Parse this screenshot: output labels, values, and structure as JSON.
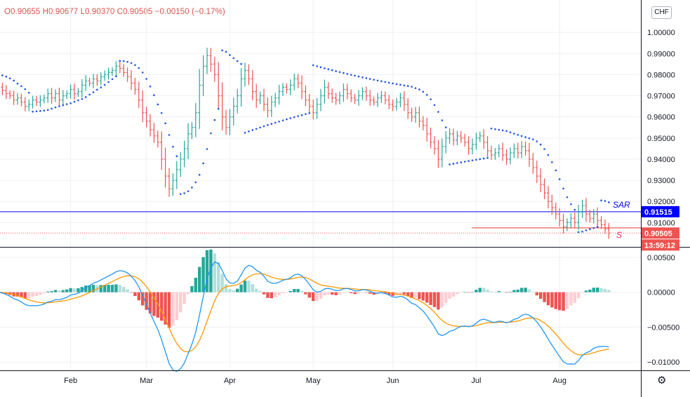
{
  "header": {
    "open": "O0.90655",
    "high": "H0.90677",
    "low": "L0.90370",
    "close": "C0.90505",
    "change": "−0.00150 (−0.17%)",
    "currency_badge": "CHF"
  },
  "colors": {
    "up": "#26a69a",
    "down": "#ef5350",
    "macd_line": "#2196f3",
    "signal_line": "#ff9800",
    "hist_up_strong": "#26a69a",
    "hist_up_weak": "#b2dfdb",
    "hist_down_strong": "#ef5350",
    "hist_down_weak": "#ffcdd2",
    "sar_dots": "#1e53e5",
    "support_line": "#e53935",
    "sar_level_line": "#0000ff"
  },
  "chart_data": [
    {
      "type": "ohlc",
      "symbol_quote_currency": "CHF",
      "x_ticks": [
        "Feb",
        "Mar",
        "Apr",
        "May",
        "Jun",
        "Jul",
        "Aug"
      ],
      "y_ticks": [
        "0.91000",
        "0.92000",
        "0.93000",
        "0.94000",
        "0.95000",
        "0.96000",
        "0.97000",
        "0.98000",
        "0.99000",
        "1.00000"
      ],
      "ylim": [
        0.8985,
        1.012
      ],
      "closes": [
        0.974,
        0.9725,
        0.971,
        0.97,
        0.968,
        0.969,
        0.967,
        0.965,
        0.966,
        0.968,
        0.967,
        0.968,
        0.969,
        0.971,
        0.969,
        0.971,
        0.968,
        0.97,
        0.971,
        0.973,
        0.971,
        0.972,
        0.975,
        0.977,
        0.976,
        0.978,
        0.977,
        0.979,
        0.98,
        0.981,
        0.982,
        0.984,
        0.983,
        0.981,
        0.979,
        0.976,
        0.973,
        0.968,
        0.962,
        0.958,
        0.954,
        0.951,
        0.948,
        0.94,
        0.932,
        0.926,
        0.93,
        0.935,
        0.94,
        0.945,
        0.952,
        0.955,
        0.962,
        0.975,
        0.984,
        0.989,
        0.985,
        0.98,
        0.97,
        0.96,
        0.955,
        0.96,
        0.965,
        0.97,
        0.978,
        0.982,
        0.978,
        0.972,
        0.968,
        0.97,
        0.966,
        0.963,
        0.967,
        0.969,
        0.972,
        0.974,
        0.973,
        0.975,
        0.978,
        0.976,
        0.972,
        0.968,
        0.965,
        0.962,
        0.966,
        0.97,
        0.974,
        0.971,
        0.969,
        0.968,
        0.97,
        0.973,
        0.971,
        0.969,
        0.968,
        0.97,
        0.972,
        0.97,
        0.968,
        0.967,
        0.969,
        0.97,
        0.968,
        0.966,
        0.965,
        0.967,
        0.969,
        0.966,
        0.962,
        0.96,
        0.962,
        0.958,
        0.956,
        0.952,
        0.948,
        0.945,
        0.94,
        0.946,
        0.95,
        0.952,
        0.949,
        0.951,
        0.95,
        0.948,
        0.945,
        0.947,
        0.95,
        0.951,
        0.948,
        0.944,
        0.942,
        0.943,
        0.945,
        0.942,
        0.94,
        0.943,
        0.945,
        0.943,
        0.946,
        0.944,
        0.94,
        0.936,
        0.932,
        0.928,
        0.924,
        0.92,
        0.917,
        0.914,
        0.911,
        0.908,
        0.91,
        0.912,
        0.91,
        0.915,
        0.918,
        0.914,
        0.912,
        0.914,
        0.911,
        0.909,
        0.907,
        0.905
      ],
      "sar_level": "0.91515",
      "sar_level_value": 0.91515,
      "last_price": "0.90505",
      "last_price_value": 0.90505,
      "countdown": "13:59:12",
      "support_value": 0.9075,
      "annotations": {
        "sar_label": "SAR",
        "support_label": "S"
      }
    },
    {
      "type": "macd",
      "y_ticks": [
        "0.00500",
        "0.00000",
        "−0.00500",
        "−0.01000"
      ],
      "ylim": [
        -0.0112,
        0.0062
      ]
    }
  ]
}
